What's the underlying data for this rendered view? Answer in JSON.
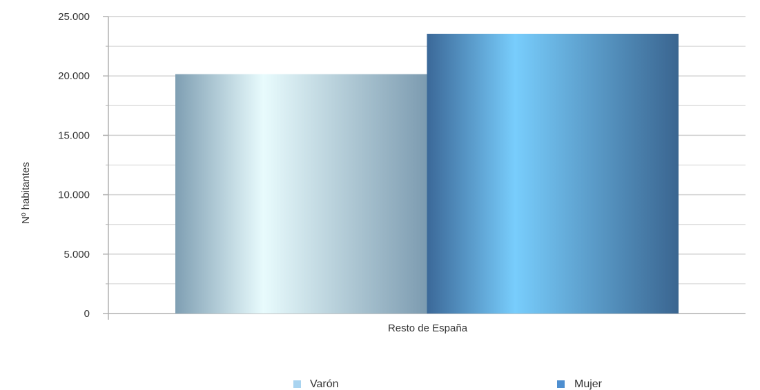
{
  "chart_data": {
    "type": "bar",
    "categories": [
      "Resto de España"
    ],
    "series": [
      {
        "name": "Varón",
        "values": [
          20150
        ],
        "legend_color": "#a9d4f0"
      },
      {
        "name": "Mujer",
        "values": [
          23550
        ],
        "legend_color": "#4e8fd0"
      }
    ],
    "title": "",
    "xlabel": "",
    "ylabel": "Nº habitantes",
    "ylim": [
      0,
      25000
    ],
    "y_ticks": [
      0,
      5000,
      10000,
      15000,
      20000,
      25000
    ],
    "y_tick_labels": [
      "0",
      "5.000",
      "10.000",
      "15.000",
      "20.000",
      "25.000"
    ],
    "grid": true,
    "legend_position": "bottom",
    "colors": {
      "gridline": "#d0d0d0",
      "axis": "#b0b0b0",
      "text": "#333333"
    }
  }
}
